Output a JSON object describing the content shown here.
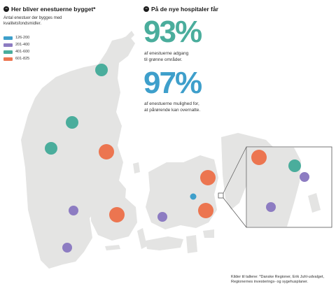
{
  "left_heading": "Her bliver enestuerne bygget*",
  "left_subtitle": "Antal enestuer der bygges med kvalitetsfondsmidler.",
  "legend": [
    {
      "label": "126-200",
      "color": "#3e9fcb"
    },
    {
      "label": "201-400",
      "color": "#8d7cc2"
    },
    {
      "label": "401-600",
      "color": "#4aad9c"
    },
    {
      "label": "601-825",
      "color": "#ec7550"
    }
  ],
  "right_heading": "På de nye hospitaler får",
  "stat1": {
    "value": "93%",
    "caption_line1": "af enestuerne adgang",
    "caption_line2": "til grønne områder."
  },
  "stat2": {
    "value": "97%",
    "caption_line1": "af enestuerne mulighed for,",
    "caption_line2": "at pårørende kan overnatte."
  },
  "source_line1": "Kilder til tallene: *Danske Regioner, Erik Juhl-udvalget,",
  "source_line2": "Regionernes investerings- og sygehusplaner.",
  "markers": [
    {
      "category": "401-600"
    },
    {
      "category": "401-600"
    },
    {
      "category": "401-600"
    },
    {
      "category": "601-825"
    },
    {
      "category": "201-400"
    },
    {
      "category": "601-825"
    },
    {
      "category": "201-400"
    },
    {
      "category": "201-400"
    },
    {
      "category": "601-825"
    },
    {
      "category": "126-200"
    },
    {
      "category": "601-825"
    }
  ],
  "inset_markers": [
    {
      "category": "601-825"
    },
    {
      "category": "401-600"
    },
    {
      "category": "201-400"
    },
    {
      "category": "201-400"
    }
  ]
}
